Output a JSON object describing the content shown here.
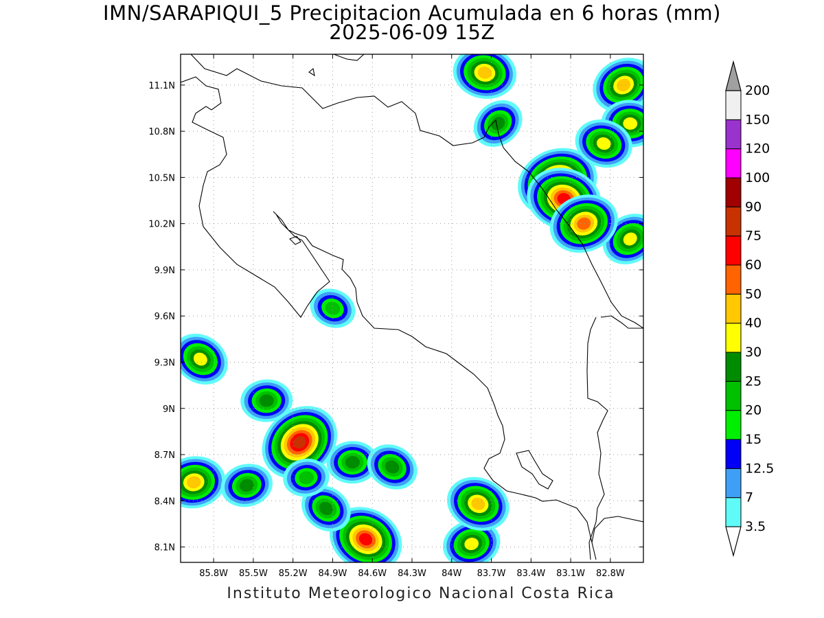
{
  "title": {
    "line1": "IMN/SARAPIQUI_5 Precipitacion Acumulada en 6 horas (mm)",
    "line2": "2025-06-09 15Z"
  },
  "footer": "Instituto Meteorologico Nacional Costa Rica",
  "map": {
    "lon_range": [
      -86.05,
      -82.55
    ],
    "lat_range": [
      8.0,
      11.3
    ],
    "lon_ticks": [
      "85.8W",
      "85.5W",
      "85.2W",
      "84.9W",
      "84.6W",
      "84.3W",
      "84W",
      "83.7W",
      "83.4W",
      "83.1W",
      "82.8W"
    ],
    "lat_ticks": [
      "8.1N",
      "8.4N",
      "8.7N",
      "9N",
      "9.3N",
      "9.6N",
      "9.9N",
      "10.2N",
      "10.5N",
      "10.8N",
      "11.1N"
    ],
    "grid": true
  },
  "colorbar": {
    "levels": [
      "3.5",
      "7",
      "12.5",
      "15",
      "20",
      "25",
      "30",
      "40",
      "50",
      "60",
      "75",
      "90",
      "100",
      "120",
      "150",
      "200"
    ],
    "colors": [
      "#5ffbf9",
      "#3f9ff7",
      "#0000f6",
      "#00ee00",
      "#00c000",
      "#008c00",
      "#ffff00",
      "#ffc800",
      "#ff6400",
      "#ff0000",
      "#c83200",
      "#a00000",
      "#ff00ff",
      "#9a32cd",
      "#f0f0f0",
      "#a0a0a0"
    ]
  },
  "precip_cells": [
    {
      "lon": -85.15,
      "lat": 8.78,
      "peak": 75
    },
    {
      "lon": -85.4,
      "lat": 9.05,
      "peak": 25
    },
    {
      "lon": -85.9,
      "lat": 9.32,
      "peak": 30
    },
    {
      "lon": -85.95,
      "lat": 8.52,
      "peak": 40
    },
    {
      "lon": -84.65,
      "lat": 8.15,
      "peak": 60
    },
    {
      "lon": -83.85,
      "lat": 8.12,
      "peak": 30
    },
    {
      "lon": -83.8,
      "lat": 8.38,
      "peak": 40
    },
    {
      "lon": -83.2,
      "lat": 10.47,
      "peak": 75
    },
    {
      "lon": -83.15,
      "lat": 10.36,
      "peak": 60
    },
    {
      "lon": -82.7,
      "lat": 11.1,
      "peak": 40
    },
    {
      "lon": -83.75,
      "lat": 11.18,
      "peak": 40
    },
    {
      "lon": -82.65,
      "lat": 10.1,
      "peak": 30
    },
    {
      "lon": -82.65,
      "lat": 10.85,
      "peak": 30
    },
    {
      "lon": -83.65,
      "lat": 10.85,
      "peak": 25
    },
    {
      "lon": -84.75,
      "lat": 8.65,
      "peak": 25
    },
    {
      "lon": -84.95,
      "lat": 8.35,
      "peak": 25
    },
    {
      "lon": -85.1,
      "lat": 8.55,
      "peak": 20
    },
    {
      "lon": -84.45,
      "lat": 8.62,
      "peak": 25
    },
    {
      "lon": -85.55,
      "lat": 8.5,
      "peak": 25
    },
    {
      "lon": -84.9,
      "lat": 9.65,
      "peak": 20
    },
    {
      "lon": -83.0,
      "lat": 10.2,
      "peak": 50
    },
    {
      "lon": -82.85,
      "lat": 10.72,
      "peak": 30
    }
  ]
}
